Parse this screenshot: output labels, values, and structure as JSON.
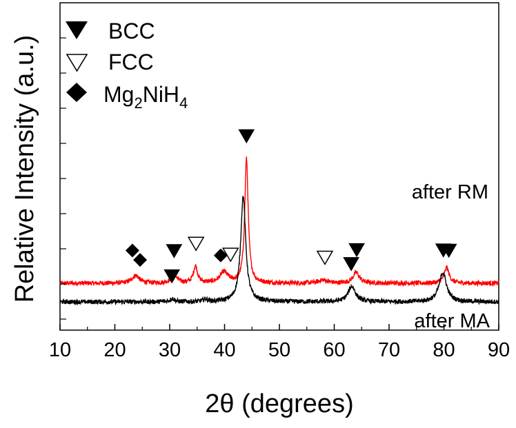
{
  "chart_data": {
    "type": "line",
    "xlabel": "2θ (degrees)",
    "ylabel": "Relative Intensity (a.u.)",
    "xlim": [
      10,
      90
    ],
    "x_ticks": [
      "10",
      "20",
      "30",
      "40",
      "50",
      "60",
      "70",
      "80",
      "90"
    ],
    "y_ticks_labeled": false,
    "grid": false,
    "legend": {
      "placement": "top-left",
      "entries": [
        {
          "marker": "filled-down-triangle",
          "label": "BCC"
        },
        {
          "marker": "open-down-triangle",
          "label": "FCC"
        },
        {
          "marker": "filled-diamond",
          "label_main": "Mg",
          "label_sub1": "2",
          "label_mid": "NiH",
          "label_sub2": "4"
        }
      ]
    },
    "series": [
      {
        "name": "after RM",
        "color": "#ff0000",
        "baseline": 0.12,
        "peaks": [
          {
            "x": 23.8,
            "h": 0.05,
            "w": 0.8
          },
          {
            "x": 30.8,
            "h": 0.06,
            "w": 0.6
          },
          {
            "x": 34.7,
            "h": 0.11,
            "w": 0.45
          },
          {
            "x": 39.9,
            "h": 0.07,
            "w": 0.9
          },
          {
            "x": 44.0,
            "h": 0.8,
            "w": 0.38
          },
          {
            "x": 58.0,
            "h": 0.02,
            "w": 1.0
          },
          {
            "x": 64.0,
            "h": 0.07,
            "w": 0.7
          },
          {
            "x": 80.5,
            "h": 0.1,
            "w": 0.55
          }
        ]
      },
      {
        "name": "after MA",
        "color": "#000000",
        "baseline": 0.0,
        "peaks": [
          {
            "x": 30.5,
            "h": 0.02,
            "w": 0.5
          },
          {
            "x": 36.5,
            "h": 0.015,
            "w": 0.5
          },
          {
            "x": 43.4,
            "h": 0.68,
            "w": 0.55
          },
          {
            "x": 63.2,
            "h": 0.1,
            "w": 0.8
          },
          {
            "x": 79.8,
            "h": 0.19,
            "w": 0.8
          }
        ]
      }
    ],
    "annotations": [
      {
        "text": "after RM"
      },
      {
        "text": "after MA"
      }
    ],
    "markers": [
      {
        "type": "filled-diamond",
        "x": 23.2,
        "series": "after RM"
      },
      {
        "type": "filled-diamond",
        "x": 24.6,
        "series": "after RM"
      },
      {
        "type": "filled-down-triangle",
        "x": 30.8,
        "series": "after RM"
      },
      {
        "type": "open-down-triangle",
        "x": 34.8,
        "series": "after RM"
      },
      {
        "type": "filled-diamond",
        "x": 39.3,
        "series": "after RM"
      },
      {
        "type": "open-down-triangle",
        "x": 41.1,
        "series": "after RM"
      },
      {
        "type": "filled-down-triangle",
        "x": 44.0,
        "series": "after RM"
      },
      {
        "type": "open-down-triangle",
        "x": 58.3,
        "series": "after RM"
      },
      {
        "type": "filled-down-triangle",
        "x": 64.1,
        "series": "after RM"
      },
      {
        "type": "filled-down-triangle",
        "x": 80.9,
        "series": "after RM"
      },
      {
        "type": "filled-down-triangle",
        "x": 30.4,
        "series": "after MA"
      },
      {
        "type": "filled-down-triangle",
        "x": 63.1,
        "series": "after MA"
      },
      {
        "type": "filled-down-triangle",
        "x": 79.9,
        "series": "after MA"
      }
    ]
  }
}
